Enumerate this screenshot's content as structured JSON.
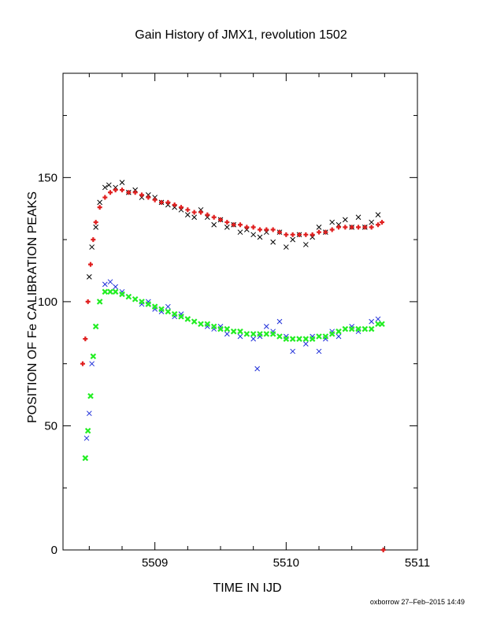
{
  "chart_data": {
    "type": "scatter",
    "title": "Gain History of JMX1, revolution 1502",
    "xlabel": "TIME IN IJD",
    "ylabel": "POSITION OF Fe CALIBRATION PEAKS",
    "xlim": [
      5508.3,
      5511.0
    ],
    "ylim": [
      0,
      192
    ],
    "xticks": [
      5509,
      5510,
      5511
    ],
    "yticks": [
      0,
      50,
      100,
      150
    ],
    "grid": false,
    "footer": "oxborrow 27–Feb–2015 14:49",
    "series": [
      {
        "marker": "x",
        "color": "#000000",
        "points": [
          [
            5508.5,
            110
          ],
          [
            5508.52,
            122
          ],
          [
            5508.55,
            130
          ],
          [
            5508.58,
            140
          ],
          [
            5508.62,
            146
          ],
          [
            5508.65,
            147
          ],
          [
            5508.7,
            146
          ],
          [
            5508.75,
            148
          ],
          [
            5508.8,
            144
          ],
          [
            5508.85,
            145
          ],
          [
            5508.9,
            142
          ],
          [
            5508.95,
            143
          ],
          [
            5509.0,
            142
          ],
          [
            5509.05,
            140
          ],
          [
            5509.1,
            139
          ],
          [
            5509.15,
            138
          ],
          [
            5509.2,
            137
          ],
          [
            5509.25,
            135
          ],
          [
            5509.3,
            134
          ],
          [
            5509.35,
            137
          ],
          [
            5509.4,
            134
          ],
          [
            5509.45,
            131
          ],
          [
            5509.5,
            133
          ],
          [
            5509.55,
            130
          ],
          [
            5509.6,
            131
          ],
          [
            5509.65,
            128
          ],
          [
            5509.7,
            129
          ],
          [
            5509.75,
            127
          ],
          [
            5509.8,
            126
          ],
          [
            5509.85,
            128
          ],
          [
            5509.9,
            124
          ],
          [
            5509.95,
            128
          ],
          [
            5510.0,
            122
          ],
          [
            5510.05,
            125
          ],
          [
            5510.1,
            127
          ],
          [
            5510.15,
            123
          ],
          [
            5510.2,
            126
          ],
          [
            5510.25,
            130
          ],
          [
            5510.3,
            128
          ],
          [
            5510.35,
            132
          ],
          [
            5510.4,
            131
          ],
          [
            5510.45,
            133
          ],
          [
            5510.5,
            130
          ],
          [
            5510.55,
            134
          ],
          [
            5510.6,
            130
          ],
          [
            5510.65,
            132
          ],
          [
            5510.7,
            135
          ]
        ]
      },
      {
        "marker": "+",
        "color": "#e02020",
        "points": [
          [
            5508.45,
            75
          ],
          [
            5508.47,
            85
          ],
          [
            5508.49,
            100
          ],
          [
            5508.51,
            115
          ],
          [
            5508.53,
            125
          ],
          [
            5508.55,
            132
          ],
          [
            5508.58,
            138
          ],
          [
            5508.62,
            142
          ],
          [
            5508.66,
            144
          ],
          [
            5508.7,
            145
          ],
          [
            5508.75,
            145
          ],
          [
            5508.8,
            144
          ],
          [
            5508.85,
            144
          ],
          [
            5508.9,
            143
          ],
          [
            5508.95,
            142
          ],
          [
            5509.0,
            141
          ],
          [
            5509.05,
            140
          ],
          [
            5509.1,
            140
          ],
          [
            5509.15,
            139
          ],
          [
            5509.2,
            138
          ],
          [
            5509.25,
            137
          ],
          [
            5509.3,
            136
          ],
          [
            5509.35,
            136
          ],
          [
            5509.4,
            135
          ],
          [
            5509.45,
            134
          ],
          [
            5509.5,
            133
          ],
          [
            5509.55,
            132
          ],
          [
            5509.6,
            131
          ],
          [
            5509.65,
            131
          ],
          [
            5509.7,
            130
          ],
          [
            5509.75,
            130
          ],
          [
            5509.8,
            129
          ],
          [
            5509.85,
            129
          ],
          [
            5509.9,
            129
          ],
          [
            5509.95,
            128
          ],
          [
            5510.0,
            127
          ],
          [
            5510.05,
            127
          ],
          [
            5510.1,
            127
          ],
          [
            5510.15,
            127
          ],
          [
            5510.2,
            127
          ],
          [
            5510.25,
            128
          ],
          [
            5510.3,
            128
          ],
          [
            5510.35,
            129
          ],
          [
            5510.4,
            130
          ],
          [
            5510.45,
            130
          ],
          [
            5510.5,
            130
          ],
          [
            5510.55,
            130
          ],
          [
            5510.6,
            130
          ],
          [
            5510.65,
            130
          ],
          [
            5510.7,
            131
          ],
          [
            5510.73,
            132
          ],
          [
            5510.74,
            0
          ]
        ]
      },
      {
        "marker": "x",
        "color": "#1f2fd9",
        "points": [
          [
            5508.47,
            37
          ],
          [
            5508.48,
            45
          ],
          [
            5508.5,
            55
          ],
          [
            5508.52,
            75
          ],
          [
            5508.55,
            90
          ],
          [
            5508.58,
            100
          ],
          [
            5508.62,
            107
          ],
          [
            5508.66,
            108
          ],
          [
            5508.7,
            106
          ],
          [
            5508.75,
            104
          ],
          [
            5508.8,
            102
          ],
          [
            5508.85,
            101
          ],
          [
            5508.9,
            99
          ],
          [
            5508.95,
            100
          ],
          [
            5509.0,
            97
          ],
          [
            5509.05,
            96
          ],
          [
            5509.1,
            98
          ],
          [
            5509.15,
            94
          ],
          [
            5509.2,
            95
          ],
          [
            5509.25,
            93
          ],
          [
            5509.3,
            92
          ],
          [
            5509.35,
            91
          ],
          [
            5509.4,
            90
          ],
          [
            5509.45,
            89
          ],
          [
            5509.5,
            90
          ],
          [
            5509.55,
            87
          ],
          [
            5509.6,
            88
          ],
          [
            5509.65,
            86
          ],
          [
            5509.7,
            87
          ],
          [
            5509.75,
            85
          ],
          [
            5509.78,
            73
          ],
          [
            5509.8,
            86
          ],
          [
            5509.85,
            90
          ],
          [
            5509.9,
            88
          ],
          [
            5509.95,
            92
          ],
          [
            5510.0,
            86
          ],
          [
            5510.05,
            80
          ],
          [
            5510.1,
            85
          ],
          [
            5510.15,
            83
          ],
          [
            5510.2,
            86
          ],
          [
            5510.25,
            80
          ],
          [
            5510.3,
            85
          ],
          [
            5510.35,
            88
          ],
          [
            5510.4,
            86
          ],
          [
            5510.45,
            89
          ],
          [
            5510.5,
            90
          ],
          [
            5510.55,
            88
          ],
          [
            5510.6,
            89
          ],
          [
            5510.65,
            92
          ],
          [
            5510.7,
            93
          ]
        ]
      },
      {
        "marker": "x",
        "color": "#22ee22",
        "points": [
          [
            5508.47,
            37
          ],
          [
            5508.49,
            48
          ],
          [
            5508.51,
            62
          ],
          [
            5508.53,
            78
          ],
          [
            5508.55,
            90
          ],
          [
            5508.58,
            100
          ],
          [
            5508.62,
            104
          ],
          [
            5508.66,
            104
          ],
          [
            5508.7,
            104
          ],
          [
            5508.75,
            103
          ],
          [
            5508.8,
            102
          ],
          [
            5508.85,
            101
          ],
          [
            5508.9,
            100
          ],
          [
            5508.95,
            99
          ],
          [
            5509.0,
            98
          ],
          [
            5509.05,
            97
          ],
          [
            5509.1,
            96
          ],
          [
            5509.15,
            95
          ],
          [
            5509.2,
            94
          ],
          [
            5509.25,
            93
          ],
          [
            5509.3,
            92
          ],
          [
            5509.35,
            91
          ],
          [
            5509.4,
            91
          ],
          [
            5509.45,
            90
          ],
          [
            5509.5,
            89
          ],
          [
            5509.55,
            89
          ],
          [
            5509.6,
            88
          ],
          [
            5509.65,
            88
          ],
          [
            5509.7,
            87
          ],
          [
            5509.75,
            87
          ],
          [
            5509.8,
            87
          ],
          [
            5509.85,
            87
          ],
          [
            5509.9,
            87
          ],
          [
            5509.95,
            86
          ],
          [
            5510.0,
            85
          ],
          [
            5510.05,
            85
          ],
          [
            5510.1,
            85
          ],
          [
            5510.15,
            85
          ],
          [
            5510.2,
            85
          ],
          [
            5510.25,
            86
          ],
          [
            5510.3,
            86
          ],
          [
            5510.35,
            87
          ],
          [
            5510.4,
            88
          ],
          [
            5510.45,
            89
          ],
          [
            5510.5,
            89
          ],
          [
            5510.55,
            89
          ],
          [
            5510.6,
            89
          ],
          [
            5510.65,
            89
          ],
          [
            5510.7,
            91
          ],
          [
            5510.73,
            91
          ]
        ]
      }
    ]
  }
}
